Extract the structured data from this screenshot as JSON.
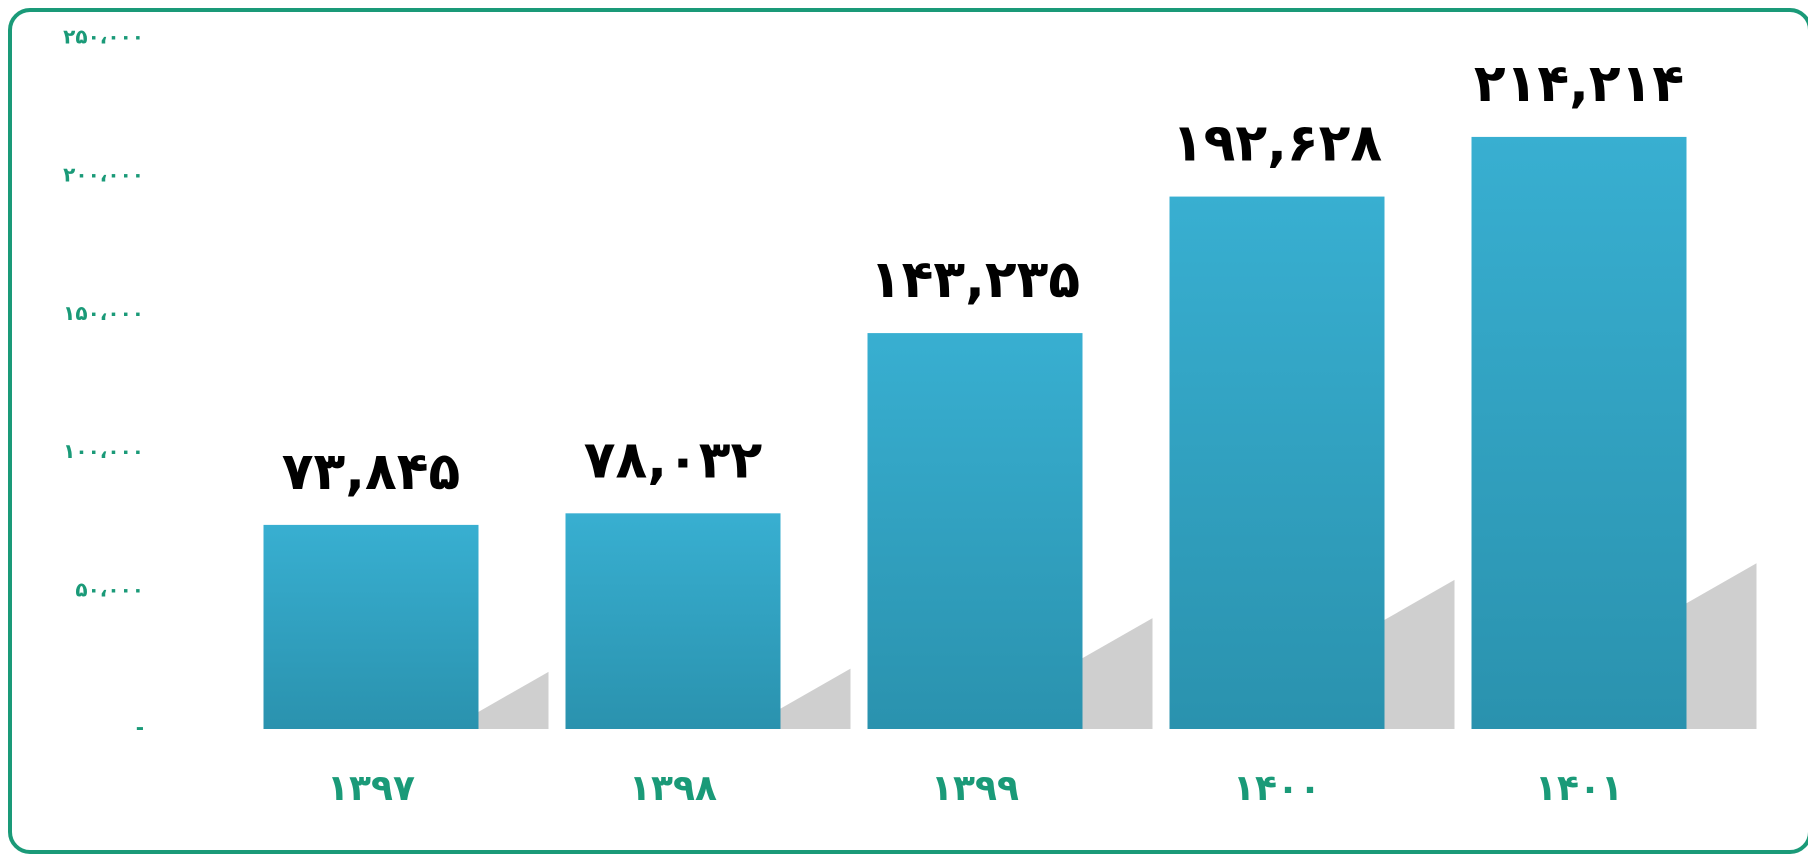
{
  "chart_data": {
    "type": "bar",
    "categories": [
      "۱۳۹۷",
      "۱۳۹۸",
      "۱۳۹۹",
      "۱۴۰۰",
      "۱۴۰۱"
    ],
    "values": [
      73845,
      78032,
      143235,
      192628,
      214214
    ],
    "value_labels": [
      "۷۳,۸۴۵",
      "۷۸,۰۳۲",
      "۱۴۳,۲۳۵",
      "۱۹۲,۶۲۸",
      "۲۱۴,۲۱۴"
    ],
    "color": "#35a9c9",
    "ylim": [
      0,
      250000
    ],
    "yticks": [
      {
        "value": 0,
        "label": "-"
      },
      {
        "value": 50000,
        "label": "۵۰،۰۰۰"
      },
      {
        "value": 100000,
        "label": "۱۰۰،۰۰۰"
      },
      {
        "value": 150000,
        "label": "۱۵۰،۰۰۰"
      },
      {
        "value": 200000,
        "label": "۲۰۰،۰۰۰"
      },
      {
        "value": 250000,
        "label": "۲۵۰،۰۰۰"
      }
    ],
    "grid": false
  }
}
